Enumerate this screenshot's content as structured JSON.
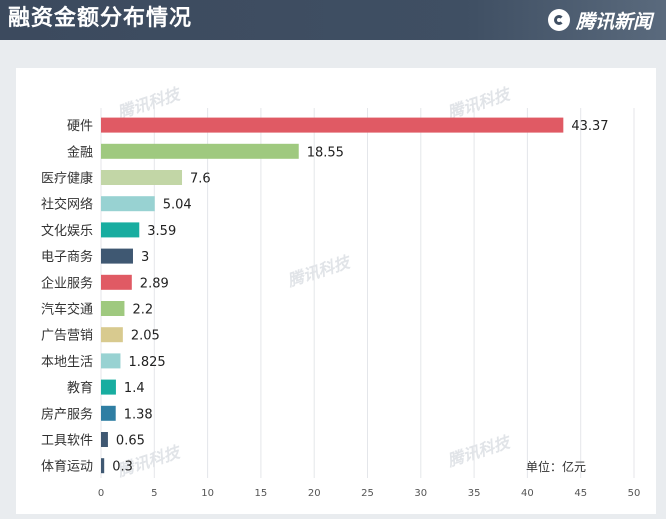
{
  "header": {
    "title": "融资金额分布情况",
    "brand": "腾讯新闻"
  },
  "watermark": "腾讯科技",
  "unit_label": "单位：亿元",
  "chart_data": {
    "type": "bar",
    "orientation": "horizontal",
    "title": "融资金额分布情况",
    "categories": [
      "硬件",
      "金融",
      "医疗健康",
      "社交网络",
      "文化娱乐",
      "电子商务",
      "企业服务",
      "汽车交通",
      "广告营销",
      "本地生活",
      "教育",
      "房产服务",
      "工具软件",
      "体育运动"
    ],
    "values": [
      43.37,
      18.55,
      7.6,
      5.04,
      3.59,
      3,
      2.89,
      2.2,
      2.05,
      1.825,
      1.4,
      1.38,
      0.65,
      0.3
    ],
    "value_labels": [
      "43.37",
      "18.55",
      "7.6",
      "5.04",
      "3.59",
      "3",
      "2.89",
      "2.2",
      "2.05",
      "1.825",
      "1.4",
      "1.38",
      "0.65",
      "0.3"
    ],
    "colors": [
      "#e05a64",
      "#9fc97f",
      "#c2d6a6",
      "#98d2d2",
      "#18ada0",
      "#3f5872",
      "#e05a64",
      "#9fc97f",
      "#d8ca8f",
      "#98d2d2",
      "#18ada0",
      "#2f7ea3",
      "#3f5872",
      "#3f5872"
    ],
    "xlim": [
      0,
      50
    ],
    "xticks": [
      0,
      5,
      10,
      15,
      20,
      25,
      30,
      35,
      40,
      45,
      50
    ],
    "grid": true,
    "xlabel": "",
    "ylabel": ""
  }
}
